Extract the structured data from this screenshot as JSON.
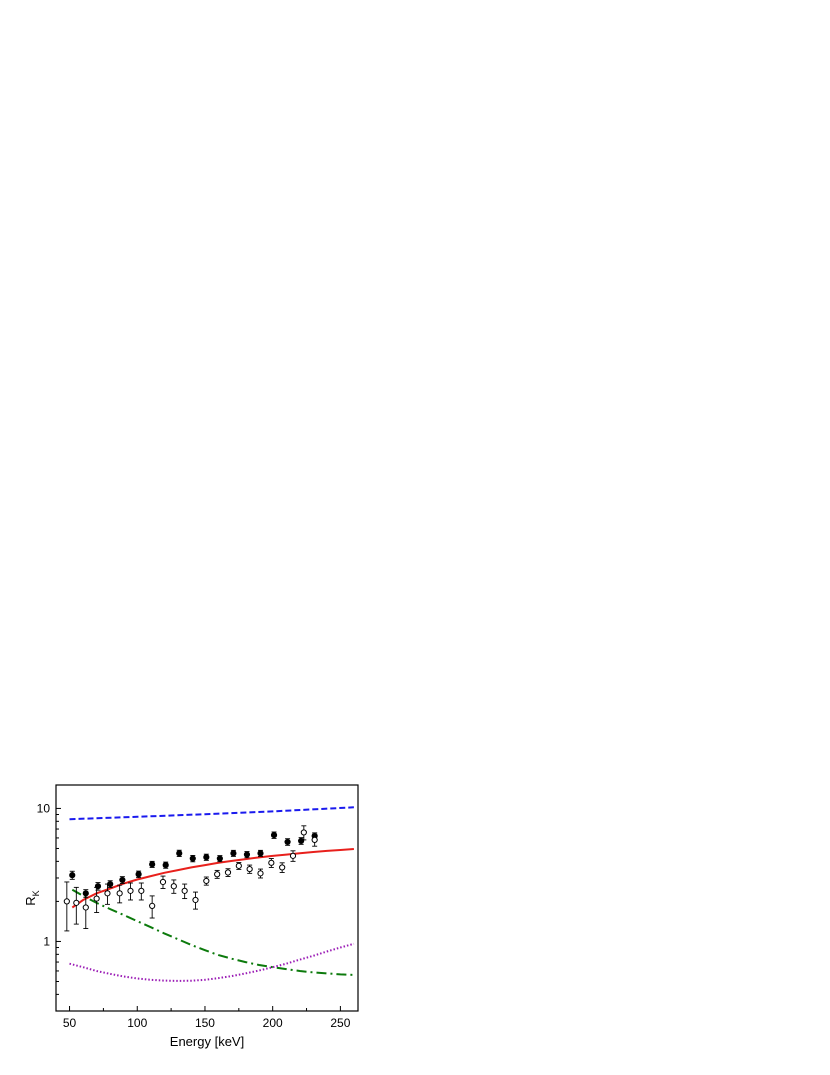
{
  "chart_data": {
    "type": "scatter",
    "title": "",
    "xlabel": "Energy [keV]",
    "ylabel_main": "R",
    "ylabel_sub": "K",
    "xlim": [
      40,
      263
    ],
    "ylim": [
      0.3,
      15
    ],
    "yscale": "log",
    "grid": false,
    "legend": "none",
    "x_ticks": [
      50,
      100,
      150,
      200,
      250
    ],
    "y_ticks": [
      1,
      10
    ],
    "series": [
      {
        "kind": "points",
        "marker": "filled-circle",
        "color": "#000000",
        "points": [
          {
            "x": 52,
            "y": 3.15,
            "err": 0.22
          },
          {
            "x": 62,
            "y": 2.3,
            "err": 0.15
          },
          {
            "x": 71,
            "y": 2.6,
            "err": 0.17
          },
          {
            "x": 80,
            "y": 2.7,
            "err": 0.16
          },
          {
            "x": 89,
            "y": 2.9,
            "err": 0.17
          },
          {
            "x": 101,
            "y": 3.2,
            "err": 0.18
          },
          {
            "x": 111,
            "y": 3.8,
            "err": 0.2
          },
          {
            "x": 121,
            "y": 3.75,
            "err": 0.2
          },
          {
            "x": 131,
            "y": 4.6,
            "err": 0.25
          },
          {
            "x": 141,
            "y": 4.2,
            "err": 0.23
          },
          {
            "x": 151,
            "y": 4.3,
            "err": 0.23
          },
          {
            "x": 161,
            "y": 4.2,
            "err": 0.22
          },
          {
            "x": 171,
            "y": 4.6,
            "err": 0.24
          },
          {
            "x": 181,
            "y": 4.5,
            "err": 0.24
          },
          {
            "x": 191,
            "y": 4.6,
            "err": 0.24
          },
          {
            "x": 201,
            "y": 6.3,
            "err": 0.35
          },
          {
            "x": 211,
            "y": 5.6,
            "err": 0.32
          },
          {
            "x": 221,
            "y": 5.7,
            "err": 0.33
          },
          {
            "x": 231,
            "y": 6.2,
            "err": 0.35
          }
        ]
      },
      {
        "kind": "points",
        "marker": "open-circle",
        "color": "#000000",
        "points": [
          {
            "x": 48,
            "y": 2.0,
            "err": 0.8
          },
          {
            "x": 55,
            "y": 1.95,
            "err": 0.6
          },
          {
            "x": 62,
            "y": 1.8,
            "err": 0.55
          },
          {
            "x": 70,
            "y": 2.1,
            "err": 0.45
          },
          {
            "x": 78,
            "y": 2.3,
            "err": 0.4
          },
          {
            "x": 87,
            "y": 2.3,
            "err": 0.35
          },
          {
            "x": 95,
            "y": 2.4,
            "err": 0.35
          },
          {
            "x": 103,
            "y": 2.4,
            "err": 0.35
          },
          {
            "x": 111,
            "y": 1.85,
            "err": 0.35
          },
          {
            "x": 119,
            "y": 2.8,
            "err": 0.3
          },
          {
            "x": 127,
            "y": 2.6,
            "err": 0.3
          },
          {
            "x": 135,
            "y": 2.4,
            "err": 0.3
          },
          {
            "x": 143,
            "y": 2.05,
            "err": 0.3
          },
          {
            "x": 151,
            "y": 2.85,
            "err": 0.2
          },
          {
            "x": 159,
            "y": 3.2,
            "err": 0.22
          },
          {
            "x": 167,
            "y": 3.3,
            "err": 0.22
          },
          {
            "x": 175,
            "y": 3.7,
            "err": 0.22
          },
          {
            "x": 183,
            "y": 3.5,
            "err": 0.25
          },
          {
            "x": 191,
            "y": 3.25,
            "err": 0.25
          },
          {
            "x": 199,
            "y": 3.9,
            "err": 0.3
          },
          {
            "x": 207,
            "y": 3.6,
            "err": 0.3
          },
          {
            "x": 215,
            "y": 4.4,
            "err": 0.4
          },
          {
            "x": 223,
            "y": 6.6,
            "err": 0.8
          },
          {
            "x": 231,
            "y": 5.8,
            "err": 0.6
          }
        ]
      },
      {
        "kind": "line",
        "style": "dashed",
        "color": "#1a1aee",
        "points": [
          {
            "x": 50,
            "y": 8.3
          },
          {
            "x": 100,
            "y": 8.65
          },
          {
            "x": 150,
            "y": 9.05
          },
          {
            "x": 200,
            "y": 9.5
          },
          {
            "x": 260,
            "y": 10.2
          }
        ]
      },
      {
        "kind": "line",
        "style": "solid",
        "color": "#e8201c",
        "points": [
          {
            "x": 52,
            "y": 1.8
          },
          {
            "x": 60,
            "y": 2.05
          },
          {
            "x": 70,
            "y": 2.3
          },
          {
            "x": 80,
            "y": 2.5
          },
          {
            "x": 90,
            "y": 2.72
          },
          {
            "x": 100,
            "y": 2.92
          },
          {
            "x": 110,
            "y": 3.1
          },
          {
            "x": 120,
            "y": 3.28
          },
          {
            "x": 130,
            "y": 3.44
          },
          {
            "x": 140,
            "y": 3.6
          },
          {
            "x": 150,
            "y": 3.75
          },
          {
            "x": 160,
            "y": 3.9
          },
          {
            "x": 170,
            "y": 4.03
          },
          {
            "x": 180,
            "y": 4.16
          },
          {
            "x": 190,
            "y": 4.28
          },
          {
            "x": 200,
            "y": 4.4
          },
          {
            "x": 210,
            "y": 4.5
          },
          {
            "x": 220,
            "y": 4.6
          },
          {
            "x": 230,
            "y": 4.7
          },
          {
            "x": 240,
            "y": 4.79
          },
          {
            "x": 250,
            "y": 4.87
          },
          {
            "x": 260,
            "y": 4.95
          }
        ]
      },
      {
        "kind": "line",
        "style": "dash-dot",
        "color": "#0c7a0c",
        "points": [
          {
            "x": 52,
            "y": 2.45
          },
          {
            "x": 60,
            "y": 2.2
          },
          {
            "x": 70,
            "y": 1.95
          },
          {
            "x": 80,
            "y": 1.75
          },
          {
            "x": 90,
            "y": 1.58
          },
          {
            "x": 100,
            "y": 1.42
          },
          {
            "x": 110,
            "y": 1.28
          },
          {
            "x": 120,
            "y": 1.15
          },
          {
            "x": 130,
            "y": 1.04
          },
          {
            "x": 140,
            "y": 0.94
          },
          {
            "x": 150,
            "y": 0.86
          },
          {
            "x": 160,
            "y": 0.79
          },
          {
            "x": 170,
            "y": 0.74
          },
          {
            "x": 180,
            "y": 0.7
          },
          {
            "x": 190,
            "y": 0.665
          },
          {
            "x": 200,
            "y": 0.64
          },
          {
            "x": 210,
            "y": 0.62
          },
          {
            "x": 220,
            "y": 0.6
          },
          {
            "x": 230,
            "y": 0.585
          },
          {
            "x": 240,
            "y": 0.575
          },
          {
            "x": 250,
            "y": 0.565
          },
          {
            "x": 260,
            "y": 0.56
          }
        ]
      },
      {
        "kind": "line",
        "style": "dotted",
        "color": "#9a1ab5",
        "points": [
          {
            "x": 50,
            "y": 0.68
          },
          {
            "x": 60,
            "y": 0.64
          },
          {
            "x": 70,
            "y": 0.6
          },
          {
            "x": 80,
            "y": 0.57
          },
          {
            "x": 90,
            "y": 0.545
          },
          {
            "x": 100,
            "y": 0.527
          },
          {
            "x": 110,
            "y": 0.515
          },
          {
            "x": 120,
            "y": 0.508
          },
          {
            "x": 130,
            "y": 0.505
          },
          {
            "x": 140,
            "y": 0.507
          },
          {
            "x": 150,
            "y": 0.515
          },
          {
            "x": 160,
            "y": 0.53
          },
          {
            "x": 170,
            "y": 0.55
          },
          {
            "x": 180,
            "y": 0.575
          },
          {
            "x": 190,
            "y": 0.605
          },
          {
            "x": 200,
            "y": 0.64
          },
          {
            "x": 210,
            "y": 0.68
          },
          {
            "x": 220,
            "y": 0.73
          },
          {
            "x": 230,
            "y": 0.78
          },
          {
            "x": 240,
            "y": 0.84
          },
          {
            "x": 250,
            "y": 0.9
          },
          {
            "x": 260,
            "y": 0.96
          }
        ]
      }
    ]
  }
}
